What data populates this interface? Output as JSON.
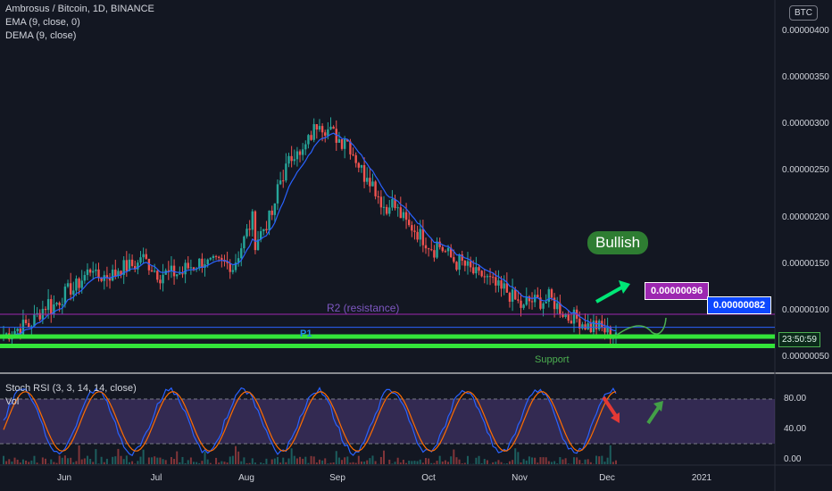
{
  "header": {
    "symbol_line": "Ambrosus / Bitcoin, 1D, BINANCE",
    "indicator1": "EMA (9, close, 0)",
    "indicator2": "DEMA (9, close)",
    "currency_button": "BTC"
  },
  "rsi_panel": {
    "title": "Stoch RSI (3, 3, 14, 14, close)",
    "vol_label": "Vol",
    "levels": [
      "80.00",
      "40.00",
      "0.00"
    ]
  },
  "annotations": {
    "bullish": "Bullish",
    "tag_purple": "0.00000096",
    "tag_blue": "0.00000082",
    "r2": "R2 (resistance)",
    "p1": "P1",
    "support": "Support",
    "countdown": "23:50:59"
  },
  "colors": {
    "background": "#131722",
    "up": "#26a69a",
    "down": "#ef5350",
    "ema": "#2962ff",
    "support_line": "#33e43a",
    "resistance_line": "#9c27b0",
    "bullish": "#2e7d32"
  },
  "chart_data": {
    "type": "candlestick",
    "y_tick_labels": [
      "0.00000400",
      "0.00000350",
      "0.00000300",
      "0.00000250",
      "0.00000200",
      "0.00000150",
      "0.00000100",
      "0.00000050"
    ],
    "x_tick_labels": [
      "Jun",
      "Jul",
      "Aug",
      "Sep",
      "Oct",
      "Nov",
      "Dec",
      "2021"
    ],
    "ylim": [
      4e-07,
      4.3e-07
    ],
    "close_path": [
      [
        7.3e-07,
        7.7e-07
      ],
      [
        8e-07,
        8.5e-07
      ],
      [
        1e-06,
        1.1e-06
      ],
      [
        1.2e-06,
        1.25e-06
      ],
      [
        1.35e-06,
        1.5e-06
      ],
      [
        1.45e-06,
        1.4e-06
      ],
      [
        1.6e-06,
        1.5e-06
      ],
      [
        1.4e-06,
        1.35e-06
      ],
      [
        1.45e-06,
        1.4e-06
      ],
      [
        1.5e-06,
        1.55e-06
      ],
      [
        1.4e-06,
        1.5e-06
      ],
      [
        1.7e-06,
        2e-06
      ],
      [
        2.3e-06,
        2.1e-06
      ],
      [
        2.6e-06,
        2.8e-06
      ],
      [
        3e-06,
        3.1e-06
      ],
      [
        2.9e-06,
        2.8e-06
      ],
      [
        2.5e-06,
        2.4e-06
      ],
      [
        2.2e-06,
        2e-06
      ],
      [
        1.9e-06,
        1.85e-06
      ],
      [
        1.75e-06,
        1.65e-06
      ],
      [
        1.55e-06,
        1.5e-06
      ],
      [
        1.4e-06,
        1.35e-06
      ],
      [
        1.25e-06,
        1.2e-06
      ],
      [
        1.1e-06,
        1e-06
      ],
      [
        1.15e-06,
        1.1e-06
      ],
      [
        9.5e-07,
        9e-07
      ],
      [
        8.5e-07,
        8e-07
      ],
      [
        7.8e-07,
        7.2e-07
      ]
    ],
    "hlines": [
      {
        "name": "R2 (resistance)",
        "value": 9.6e-07
      },
      {
        "name": "P1",
        "value": 8.2e-07
      },
      {
        "name": "Support",
        "value": 7.2e-07
      },
      {
        "name": "Support",
        "value": 6.2e-07
      }
    ],
    "rsi_levels": [
      80,
      40,
      0
    ]
  }
}
